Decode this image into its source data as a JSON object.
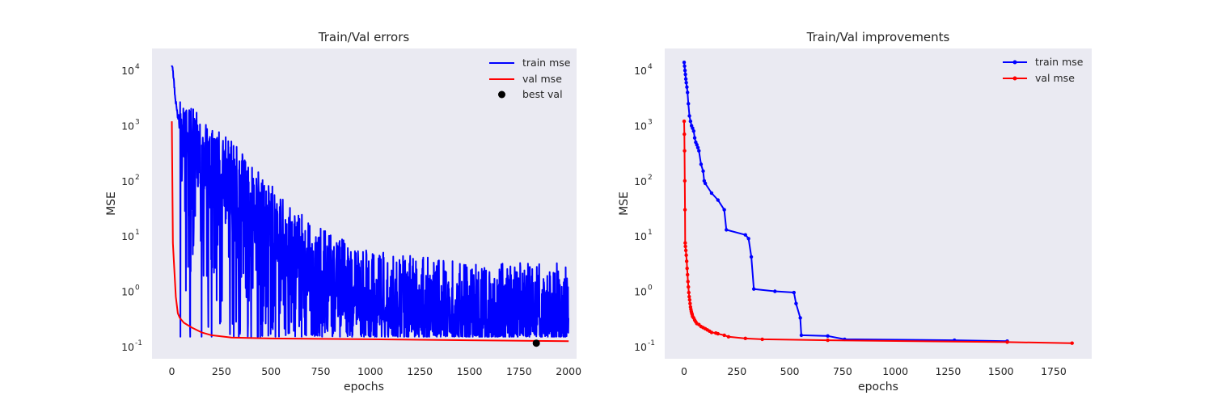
{
  "chart_data": [
    {
      "type": "line",
      "title": "Train/Val errors",
      "xlabel": "epochs",
      "ylabel": "MSE",
      "yscale": "log",
      "xlim": [
        -100,
        2040
      ],
      "ylim": [
        0.06,
        25000
      ],
      "xticks": [
        "0",
        "250",
        "500",
        "750",
        "1000",
        "1250",
        "1500",
        "1750",
        "2000"
      ],
      "yticks": [
        "10",
        "10",
        "10",
        "10",
        "10",
        "10"
      ],
      "ytick_exponents": [
        "-1",
        "0",
        "1",
        "2",
        "3",
        "4"
      ],
      "grid": false,
      "legend_position": "top-right",
      "series": [
        {
          "name": "train mse",
          "color": "#0000ff",
          "x": [
            0,
            20,
            40,
            60,
            80,
            100,
            150,
            200,
            250,
            300,
            400,
            500,
            600,
            800,
            1000,
            1500,
            2000
          ],
          "y": [
            14000,
            2500,
            1000,
            500,
            400,
            300,
            150,
            100,
            80,
            50,
            20,
            8,
            3,
            1,
            0.5,
            0.3,
            0.3
          ],
          "noisy_min": 0.15
        },
        {
          "name": "val mse",
          "color": "#ff0000",
          "x": [
            0,
            5,
            10,
            20,
            30,
            40,
            60,
            100,
            150,
            200,
            300,
            500,
            1000,
            1500,
            2000
          ],
          "y": [
            1200,
            7.5,
            3.5,
            0.8,
            0.4,
            0.33,
            0.27,
            0.22,
            0.18,
            0.16,
            0.145,
            0.14,
            0.135,
            0.13,
            0.125
          ]
        },
        {
          "name": "best val",
          "color": "#000000",
          "type": "scatter",
          "x": [
            1837
          ],
          "y": [
            0.115
          ]
        }
      ]
    },
    {
      "type": "line",
      "title": "Train/Val improvements",
      "xlabel": "epochs",
      "ylabel": "MSE",
      "yscale": "log",
      "xlim": [
        -92,
        1930
      ],
      "ylim": [
        0.06,
        25000
      ],
      "xticks": [
        "0",
        "250",
        "500",
        "750",
        "1000",
        "1250",
        "1500",
        "1750"
      ],
      "yticks": [
        "10",
        "10",
        "10",
        "10",
        "10",
        "10"
      ],
      "ytick_exponents": [
        "-1",
        "0",
        "1",
        "2",
        "3",
        "4"
      ],
      "grid": false,
      "legend_position": "top-right",
      "series": [
        {
          "name": "train mse",
          "color": "#0000ff",
          "x": [
            0,
            2,
            4,
            6,
            8,
            10,
            13,
            16,
            20,
            25,
            30,
            35,
            40,
            45,
            50,
            55,
            60,
            65,
            70,
            80,
            90,
            95,
            100,
            130,
            160,
            190,
            200,
            290,
            305,
            318,
            330,
            430,
            520,
            530,
            550,
            555,
            680,
            760,
            1280,
            1530
          ],
          "y": [
            14000,
            12000,
            10000,
            8500,
            7000,
            6000,
            5000,
            4000,
            2500,
            1500,
            1200,
            1000,
            900,
            800,
            600,
            500,
            450,
            400,
            350,
            200,
            150,
            100,
            90,
            60,
            45,
            30,
            13,
            10.5,
            9,
            4.2,
            1.1,
            1.0,
            0.95,
            0.6,
            0.33,
            0.16,
            0.155,
            0.135,
            0.13,
            0.125
          ]
        },
        {
          "name": "val mse",
          "color": "#ff0000",
          "x": [
            0,
            1,
            2,
            3,
            4,
            5,
            6,
            8,
            10,
            12,
            14,
            16,
            18,
            20,
            22,
            24,
            26,
            28,
            30,
            32,
            34,
            36,
            38,
            40,
            45,
            50,
            55,
            60,
            70,
            80,
            90,
            100,
            110,
            120,
            130,
            150,
            160,
            190,
            210,
            290,
            370,
            680,
            1530,
            1837
          ],
          "y": [
            1200,
            700,
            350,
            100,
            30,
            7.5,
            6.5,
            5.5,
            4.5,
            3.5,
            2.6,
            2.0,
            1.5,
            1.2,
            0.95,
            0.8,
            0.7,
            0.6,
            0.52,
            0.47,
            0.43,
            0.4,
            0.38,
            0.35,
            0.33,
            0.3,
            0.28,
            0.26,
            0.25,
            0.23,
            0.22,
            0.21,
            0.2,
            0.19,
            0.18,
            0.175,
            0.17,
            0.16,
            0.15,
            0.14,
            0.135,
            0.13,
            0.12,
            0.115
          ]
        }
      ]
    }
  ]
}
